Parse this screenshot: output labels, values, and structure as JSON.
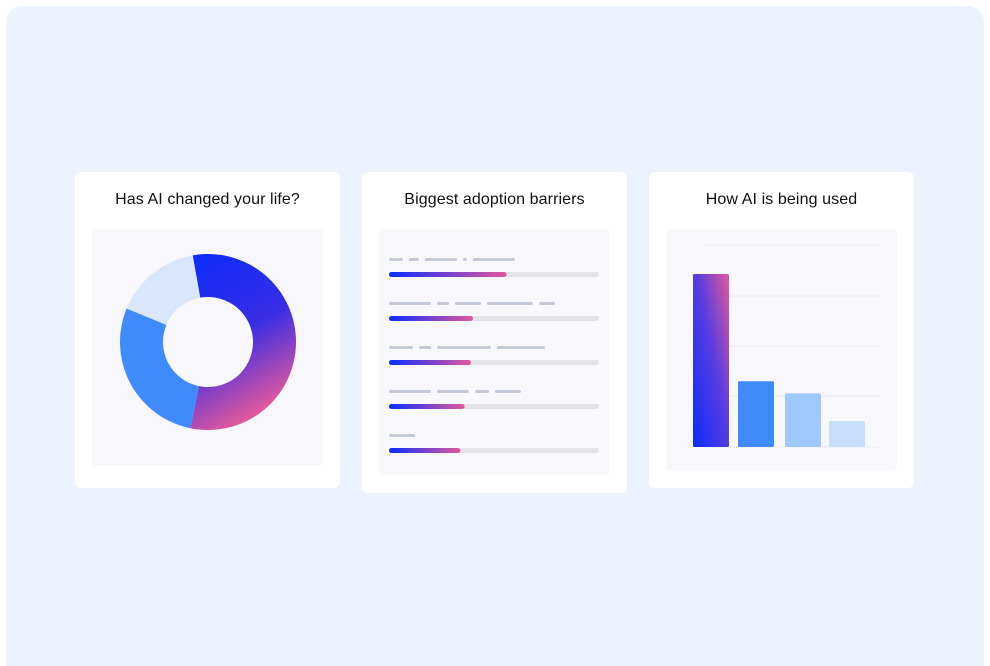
{
  "colors": {
    "background": "#ecf3fe",
    "card": "#ffffff",
    "panel": "#f8f8fc",
    "gradient_start": "#0a2cfb",
    "gradient_end": "#e0589c",
    "blue_mid": "#3f8bfd",
    "blue_light": "#9ec9fd",
    "blue_pale": "#c8dffc",
    "slice_pale": "#d9e7fc",
    "placeholder_text": "#c4c9d8",
    "track": "#e3e3ea"
  },
  "chart_data": [
    {
      "type": "pie",
      "title": "Has AI changed your life?",
      "values": [
        56,
        28,
        16
      ]
    },
    {
      "type": "bar",
      "orientation": "horizontal",
      "title": "Biggest adoption barriers",
      "values": [
        56,
        40,
        39,
        36,
        34
      ],
      "xlim": [
        0,
        100
      ]
    },
    {
      "type": "bar",
      "title": "How AI is being used",
      "values": [
        100,
        38,
        31,
        15
      ],
      "ylim": [
        0,
        100
      ],
      "grid": true
    }
  ]
}
